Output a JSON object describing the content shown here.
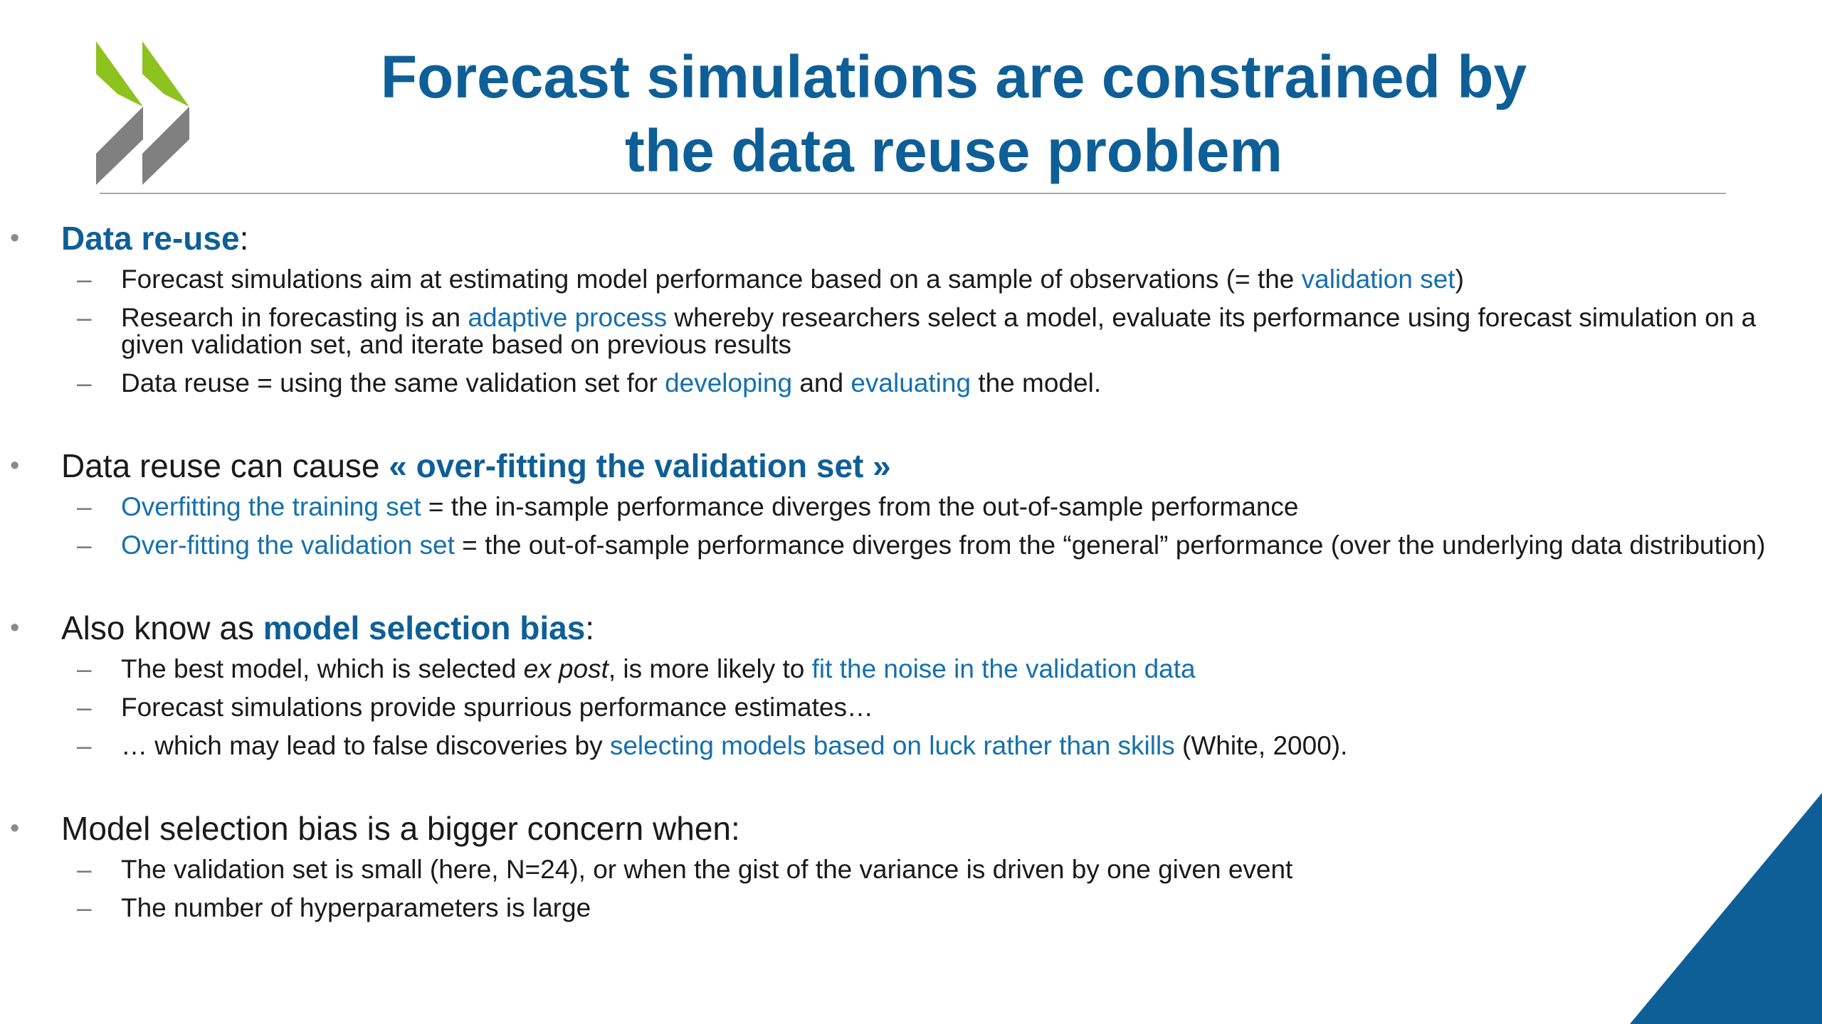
{
  "title": {
    "line1": "Forecast simulations are constrained by",
    "line2": "the data reuse problem"
  },
  "colors": {
    "title_blue": "#0e5f97",
    "highlight_blue": "#1570ad",
    "logo_green": "#8dc21f",
    "logo_grey": "#808080",
    "corner_blue": "#0e5f97"
  },
  "logo": {
    "icon": "double-chevron-logo-icon"
  },
  "sections": [
    {
      "bullet": {
        "bold": "Data re-use",
        "after": ":"
      },
      "items": [
        {
          "a": "Forecast simulations aim at estimating model performance based on a sample of observations (= the ",
          "h1": "validation set",
          "b": ")"
        },
        {
          "a": "Research in forecasting is an ",
          "h1": "adaptive process",
          "b": " whereby researchers select a model, evaluate its performance using forecast simulation on a given validation set, and iterate based on previous results"
        },
        {
          "a": "Data reuse = using the same validation set for ",
          "h1": "developing",
          "b": " and ",
          "h2": "evaluating",
          "c": " the model."
        }
      ]
    },
    {
      "bullet": {
        "before": "Data reuse can cause ",
        "bold": "« over-fitting the validation set »"
      },
      "items": [
        {
          "h1": "Overfitting the training set",
          "a": " = the in-sample performance diverges from the out-of-sample performance"
        },
        {
          "h1": "Over-fitting the validation set",
          "a": " = the out-of-sample performance diverges from the “general” performance (over the underlying data distribution)"
        }
      ]
    },
    {
      "bullet": {
        "before": "Also know as ",
        "bold": "model selection bias",
        "after": ":"
      },
      "items": [
        {
          "a": "The best model, which is selected ",
          "it": "ex post",
          "b": ", is more likely to ",
          "h1": "fit the noise in the validation data"
        },
        {
          "a": "Forecast simulations provide spurrious performance estimates…"
        },
        {
          "a": "… which may lead to false discoveries by ",
          "h1": "selecting models based on luck rather than skills",
          "b": " (White, 2000)."
        }
      ]
    },
    {
      "bullet": {
        "before": "Model selection bias is a bigger concern when:"
      },
      "items": [
        {
          "a": "The validation set is small (here, N=24), or when the gist of the variance is driven by one given event"
        },
        {
          "a": "The number of hyperparameters is large"
        }
      ]
    }
  ]
}
